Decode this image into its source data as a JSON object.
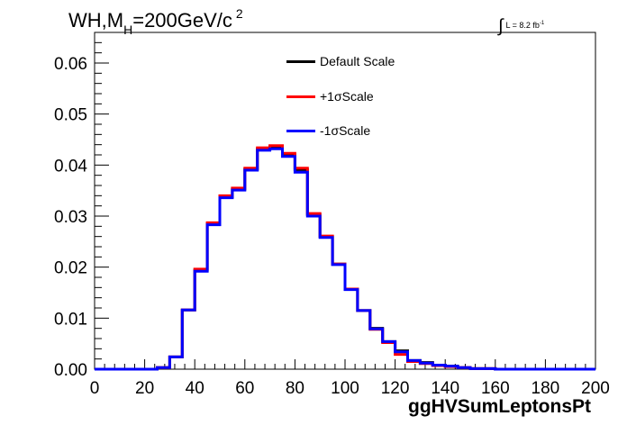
{
  "title": {
    "main": "WH,M",
    "sub": "H",
    "rest": "=200GeV/c",
    "sup": "2"
  },
  "lumi": {
    "integral": "∫",
    "text": "L = 8.2 fb",
    "sup": "-1"
  },
  "chart_data": {
    "type": "line",
    "style": "step-histogram",
    "xlabel": "ggHVSumLeptonsPt",
    "ylabel": "",
    "xlim": [
      0,
      200
    ],
    "ylim": [
      0,
      0.066
    ],
    "bin_width": 5,
    "xticks": [
      0,
      20,
      40,
      60,
      80,
      100,
      120,
      140,
      160,
      180,
      200
    ],
    "yticks": [
      0,
      0.01,
      0.02,
      0.03,
      0.04,
      0.05,
      0.06
    ],
    "ytick_labels": [
      "0.00",
      "0.01",
      "0.02",
      "0.03",
      "0.04",
      "0.05",
      "0.06"
    ],
    "grid": false,
    "legend_position": "top-center",
    "x": [
      0,
      5,
      10,
      15,
      20,
      25,
      30,
      35,
      40,
      45,
      50,
      55,
      60,
      65,
      70,
      75,
      80,
      85,
      90,
      95,
      100,
      105,
      110,
      115,
      120,
      125,
      130,
      135,
      140,
      145,
      150,
      155,
      160,
      165,
      170,
      175,
      180,
      185,
      190,
      195
    ],
    "series": [
      {
        "name": "Default Scale",
        "color": "#000000",
        "values": [
          0,
          0,
          0,
          0,
          0,
          0.0003,
          0.0024,
          0.0116,
          0.0194,
          0.0285,
          0.0338,
          0.0353,
          0.0392,
          0.0432,
          0.0436,
          0.042,
          0.0391,
          0.0303,
          0.026,
          0.0206,
          0.0157,
          0.0115,
          0.008,
          0.0054,
          0.0036,
          0.0017,
          0.0013,
          0.0008,
          0.0006,
          0.0003,
          0.0001,
          0.0001,
          0,
          0,
          0,
          0,
          0,
          0,
          0,
          0
        ]
      },
      {
        "name": "+1σScale",
        "color": "#ff0000",
        "values": [
          0,
          0,
          0,
          0,
          0,
          0.0003,
          0.0024,
          0.0116,
          0.0196,
          0.0287,
          0.034,
          0.0355,
          0.0394,
          0.0434,
          0.0438,
          0.0423,
          0.0394,
          0.0305,
          0.0261,
          0.0206,
          0.0157,
          0.0115,
          0.0078,
          0.0052,
          0.0029,
          0.0015,
          0.0011,
          0.0007,
          0.0005,
          0.0003,
          0.0001,
          0.0001,
          0,
          0,
          0,
          0,
          0,
          0,
          0,
          0
        ]
      },
      {
        "name": "-1σScale",
        "color": "#0000ff",
        "values": [
          0,
          0,
          0,
          0,
          0,
          0.0003,
          0.0024,
          0.0116,
          0.0192,
          0.0283,
          0.0336,
          0.0351,
          0.039,
          0.0429,
          0.0432,
          0.0417,
          0.0386,
          0.03,
          0.0258,
          0.0205,
          0.0156,
          0.0115,
          0.0079,
          0.0054,
          0.0034,
          0.0017,
          0.0012,
          0.0008,
          0.0006,
          0.0003,
          0.0001,
          0.0001,
          0,
          0,
          0,
          0,
          0,
          0,
          0,
          0
        ]
      }
    ]
  }
}
